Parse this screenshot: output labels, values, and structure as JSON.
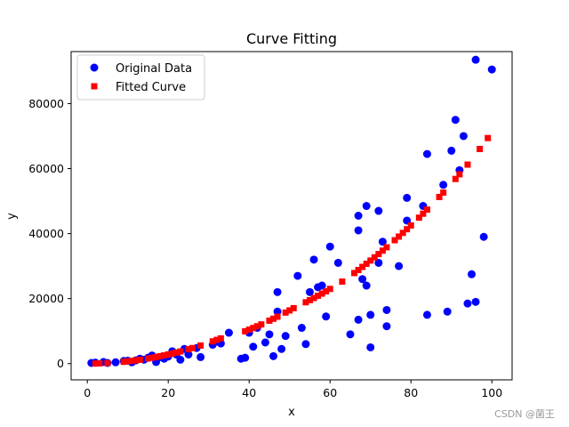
{
  "chart_data": {
    "type": "scatter",
    "title": "Curve Fitting",
    "xlabel": "x",
    "ylabel": "y",
    "xlim": [
      -4,
      105
    ],
    "ylim": [
      -5000,
      96000
    ],
    "xticks": [
      0,
      20,
      40,
      60,
      80,
      100
    ],
    "yticks": [
      0,
      20000,
      40000,
      60000,
      80000
    ],
    "ytick_labels": [
      "0",
      "20000",
      "40000",
      "60000",
      "80000"
    ],
    "grid": false,
    "legend": "upper-left",
    "series": [
      {
        "name": "Original Data",
        "marker": "circle",
        "color": "#0000ff",
        "x": [
          1,
          2,
          4,
          5,
          7,
          9,
          10,
          11,
          12,
          13,
          14,
          15,
          16,
          17,
          18,
          19,
          20,
          21,
          22,
          23,
          24,
          25,
          27,
          28,
          31,
          32,
          33,
          35,
          38,
          39,
          40,
          41,
          42,
          44,
          45,
          46,
          47,
          47,
          48,
          49,
          52,
          53,
          54,
          55,
          56,
          57,
          58,
          59,
          60,
          62,
          65,
          67,
          67,
          67,
          68,
          69,
          69,
          70,
          70,
          72,
          72,
          73,
          74,
          74,
          77,
          79,
          79,
          83,
          84,
          84,
          88,
          89,
          90,
          91,
          92,
          93,
          94,
          95,
          96,
          96,
          98,
          100
        ],
        "y": [
          200,
          300,
          500,
          200,
          400,
          800,
          900,
          400,
          1000,
          1500,
          1200,
          1800,
          2500,
          500,
          2000,
          1500,
          2200,
          3800,
          2800,
          1200,
          4500,
          2800,
          4800,
          2000,
          5800,
          6800,
          6200,
          9500,
          1500,
          1800,
          9500,
          5200,
          11000,
          6500,
          9000,
          2300,
          22000,
          16000,
          4500,
          8500,
          27000,
          11000,
          6000,
          22000,
          32000,
          23500,
          24000,
          14500,
          36000,
          31000,
          9000,
          45500,
          41000,
          13500,
          26000,
          24000,
          48500,
          5000,
          15000,
          47000,
          31000,
          37500,
          16500,
          11500,
          30000,
          51000,
          44000,
          48500,
          64500,
          15000,
          55000,
          16000,
          65500,
          75000,
          59500,
          70000,
          18500,
          27500,
          93500,
          19000,
          39000,
          90500
        ]
      },
      {
        "name": "Fitted Curve",
        "marker": "square",
        "color": "#ff0000",
        "x": [
          2,
          3,
          5,
          9,
          10,
          11,
          12,
          13,
          15,
          16,
          17,
          18,
          19,
          20,
          21,
          22,
          23,
          25,
          26,
          28,
          31,
          32,
          33,
          39,
          40,
          41,
          42,
          43,
          45,
          46,
          47,
          49,
          50,
          51,
          54,
          55,
          56,
          57,
          58,
          59,
          60,
          63,
          66,
          67,
          68,
          69,
          70,
          71,
          72,
          73,
          74,
          76,
          77,
          78,
          79,
          80,
          82,
          83,
          84,
          87,
          88,
          91,
          92,
          94,
          97,
          99
        ],
        "y": [
          20,
          60,
          170,
          560,
          700,
          850,
          1010,
          1190,
          1580,
          1800,
          2040,
          2280,
          2540,
          2820,
          3110,
          3410,
          3730,
          4410,
          4780,
          5560,
          6840,
          7290,
          7760,
          9940,
          10440,
          10960,
          11500,
          12060,
          13210,
          13810,
          14430,
          15700,
          16370,
          17060,
          18870,
          19510,
          20170,
          20850,
          21540,
          22260,
          22980,
          25230,
          27860,
          28790,
          29750,
          30720,
          31710,
          32700,
          33710,
          34750,
          35800,
          37970,
          39080,
          40210,
          41350,
          42510,
          44900,
          46130,
          47380,
          51270,
          52620,
          56810,
          58250,
          61230,
          66030,
          69400
        ]
      }
    ],
    "watermark": "CSDN @菌王"
  }
}
